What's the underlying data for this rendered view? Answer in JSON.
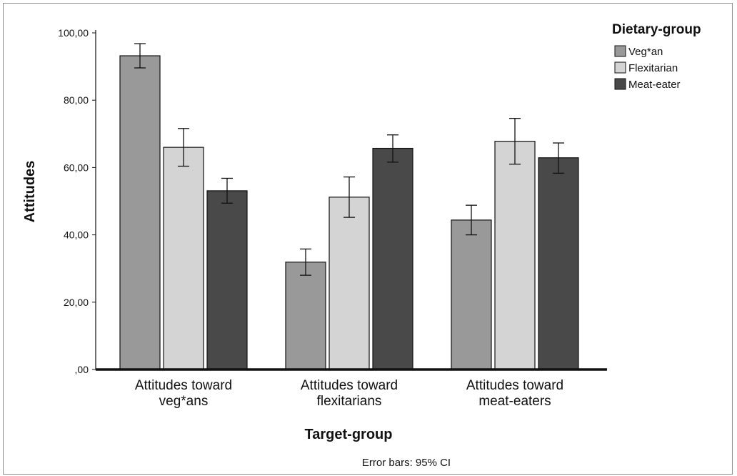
{
  "chart_data": {
    "type": "bar",
    "categories": [
      [
        "Attitudes toward",
        "veg*ans"
      ],
      [
        "Attitudes toward",
        "flexitarians"
      ],
      [
        "Attitudes toward",
        "meat-eaters"
      ]
    ],
    "series": [
      {
        "name": "Veg*an",
        "color": "#999999",
        "values": [
          93.2,
          31.9,
          44.4
        ],
        "ci_low": [
          89.6,
          28.0,
          40.0
        ],
        "ci_high": [
          96.8,
          35.8,
          48.8
        ]
      },
      {
        "name": "Flexitarian",
        "color": "#d4d4d4",
        "values": [
          66.0,
          51.2,
          67.8
        ],
        "ci_low": [
          60.4,
          45.2,
          61.0
        ],
        "ci_high": [
          71.6,
          57.2,
          74.6
        ]
      },
      {
        "name": "Meat-eater",
        "color": "#494949",
        "values": [
          53.1,
          65.7,
          62.9
        ],
        "ci_low": [
          49.4,
          61.6,
          58.3
        ],
        "ci_high": [
          56.8,
          69.7,
          67.3
        ]
      }
    ],
    "ylim": [
      0,
      100
    ],
    "yticks": [
      0,
      20,
      40,
      60,
      80,
      100
    ],
    "ytick_labels": [
      ",00",
      "20,00",
      "40,00",
      "60,00",
      "80,00",
      "100,00"
    ],
    "xlabel": "Target-group",
    "ylabel": "Attitudes",
    "legend_title": "Dietary-group",
    "legend_position": "top-right",
    "footnote": "Error bars: 95% CI",
    "grid": false
  }
}
